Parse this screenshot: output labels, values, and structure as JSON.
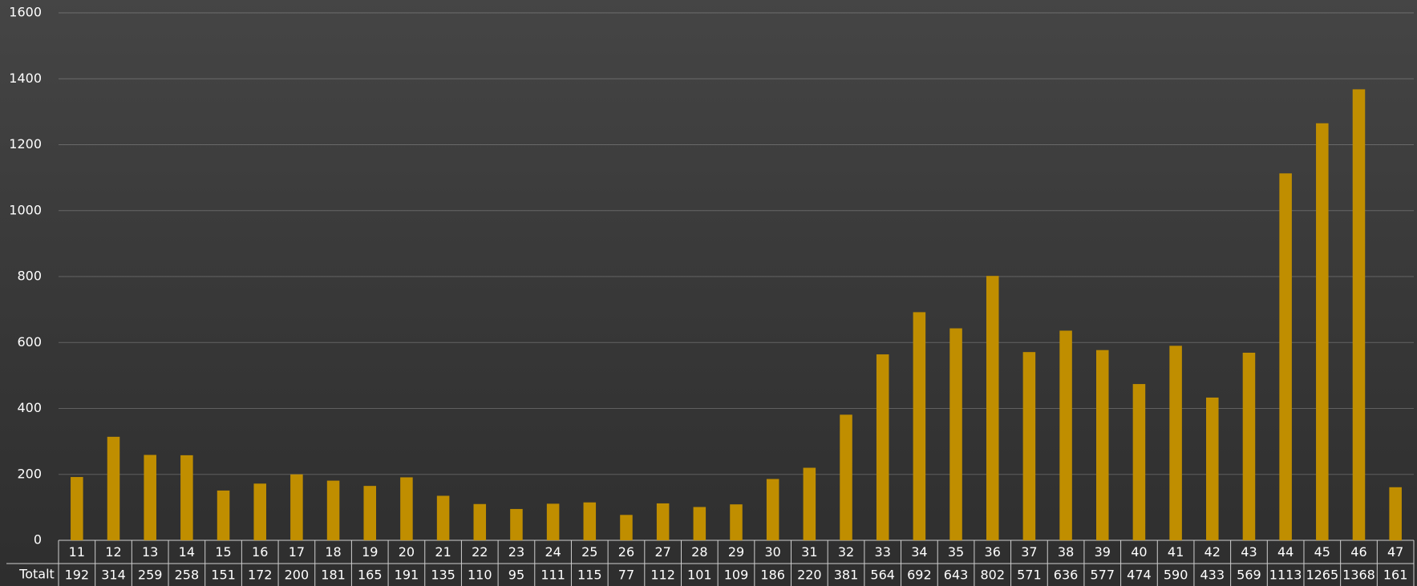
{
  "chart_data": {
    "type": "bar",
    "categories": [
      "11",
      "12",
      "13",
      "14",
      "15",
      "16",
      "17",
      "18",
      "19",
      "20",
      "21",
      "22",
      "23",
      "24",
      "25",
      "26",
      "27",
      "28",
      "29",
      "30",
      "31",
      "32",
      "33",
      "34",
      "35",
      "36",
      "37",
      "38",
      "39",
      "40",
      "41",
      "42",
      "43",
      "44",
      "45",
      "46",
      "47"
    ],
    "series": [
      {
        "name": "Totalt",
        "color": "#c08e00",
        "values": [
          192,
          314,
          259,
          258,
          151,
          172,
          200,
          181,
          165,
          191,
          135,
          110,
          95,
          111,
          115,
          77,
          112,
          101,
          109,
          186,
          220,
          381,
          564,
          692,
          643,
          802,
          571,
          636,
          577,
          474,
          590,
          433,
          569,
          1113,
          1265,
          1368,
          161
        ]
      }
    ],
    "ylim": [
      0,
      1600
    ],
    "yticks": [
      0,
      200,
      400,
      600,
      800,
      1000,
      1200,
      1400,
      1600
    ],
    "grid": true
  }
}
